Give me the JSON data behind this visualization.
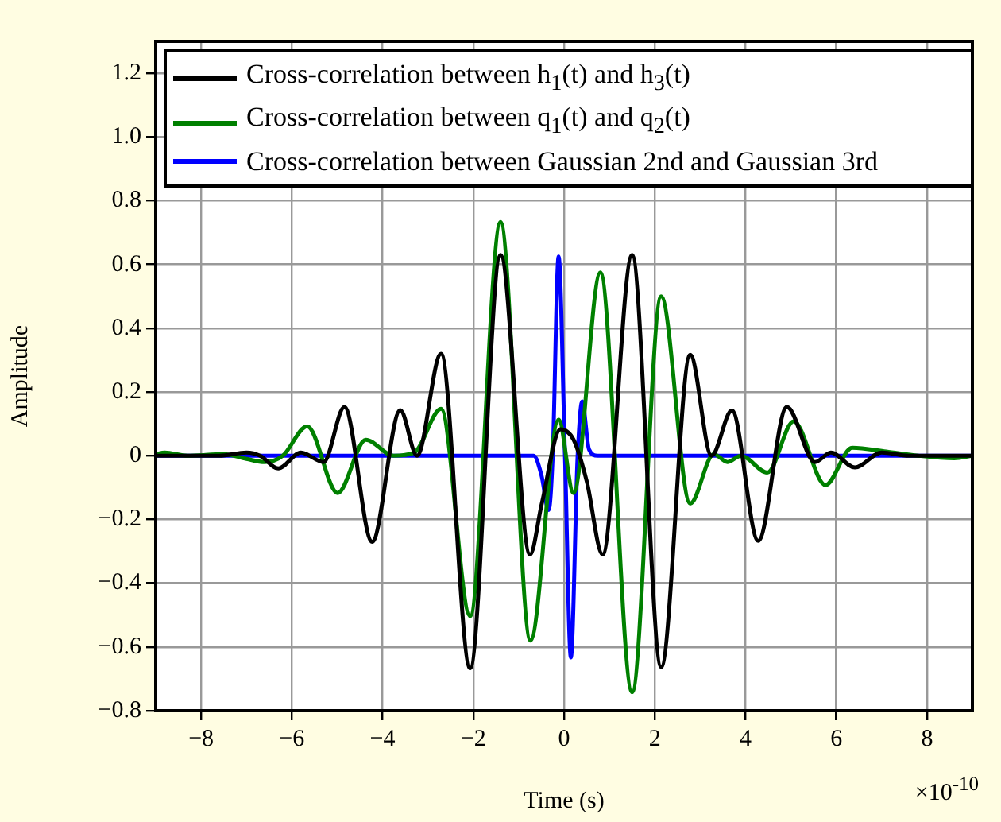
{
  "chart_data": {
    "type": "line",
    "xlabel": "Time (s)",
    "ylabel": "Amplitude",
    "annotations": [
      "×10$^{-10}$"
    ],
    "xlim": [
      -9,
      9
    ],
    "ylim": [
      -0.8,
      1.3
    ],
    "xticks": [
      {
        "value": -8,
        "label": "−8"
      },
      {
        "value": -6,
        "label": "−6"
      },
      {
        "value": -4,
        "label": "−4"
      },
      {
        "value": -2,
        "label": "−2"
      },
      0,
      2,
      4,
      6,
      8
    ],
    "yticks": [
      {
        "value": -0.8,
        "label": "−0.8"
      },
      {
        "value": -0.6,
        "label": "−0.6"
      },
      {
        "value": -0.4,
        "label": "−0.4"
      },
      {
        "value": -0.2,
        "label": "−0.2"
      },
      0,
      0.2,
      0.4,
      0.6,
      0.8,
      {
        "value": 1,
        "label": "1.0"
      },
      1.2
    ],
    "grid": true,
    "legend": "top",
    "marker": "none",
    "line_style": "solid",
    "series": [
      {
        "name": "Cross-correlation between h$_{1}$(t) and h$_{3}$(t)",
        "color": "#000000",
        "x": [
          -9,
          -7.6,
          -7,
          -6.7,
          -6.3,
          -5.8,
          -5.3,
          -4.84,
          -4.23,
          -3.61,
          -3.24,
          -2.71,
          -2.07,
          -1.4,
          -0.75,
          -0.49,
          -0.08,
          0.21,
          0.5,
          0.85,
          1.5,
          2.14,
          2.78,
          3.25,
          3.7,
          4.28,
          4.91,
          5.53,
          5.88,
          6.41,
          7,
          7.6,
          9
        ],
        "values": [
          0,
          0,
          0.01,
          0,
          -0.04,
          0.01,
          -0.02,
          0.153,
          -0.27,
          0.143,
          0,
          0.32,
          -0.667,
          0.63,
          -0.31,
          -0.15,
          0.083,
          0.05,
          -0.08,
          -0.31,
          0.63,
          -0.663,
          0.317,
          0,
          0.142,
          -0.267,
          0.153,
          -0.02,
          0.01,
          -0.037,
          0.01,
          0,
          0
        ]
      },
      {
        "name": "Cross-correlation between q$_{1}$(t) and q$_{2}$(t)",
        "color": "#008000",
        "x": [
          -9,
          -8.8,
          -8.3,
          -7.5,
          -7,
          -6.6,
          -6.2,
          -5.66,
          -4.99,
          -4.37,
          -3.76,
          -3.3,
          -2.71,
          -2.07,
          -1.4,
          -0.74,
          -0.12,
          0.21,
          0.8,
          1.5,
          2.14,
          2.78,
          3.3,
          3.6,
          3.9,
          4.48,
          5.06,
          5.76,
          6.35,
          7.1,
          7.8,
          8.6,
          9
        ],
        "values": [
          0.005,
          0.01,
          0,
          0.005,
          -0.01,
          -0.02,
          0,
          0.092,
          -0.117,
          0.05,
          0,
          0.01,
          0.147,
          -0.503,
          0.733,
          -0.58,
          0.113,
          -0.117,
          0.575,
          -0.742,
          0.5,
          -0.15,
          0.005,
          -0.02,
          0,
          -0.053,
          0.108,
          -0.092,
          0.025,
          0.013,
          0,
          -0.008,
          0
        ]
      },
      {
        "name": "Cross-correlation between Gaussian 2nd and Gaussian 3rd",
        "color": "#0000ff",
        "x": [
          -9,
          -0.67,
          -0.5,
          -0.34,
          -0.25,
          -0.12,
          0.02,
          0.15,
          0.3,
          0.4,
          0.55,
          0.74,
          9
        ],
        "values": [
          0,
          0,
          -0.06,
          -0.17,
          0,
          0.625,
          0,
          -0.633,
          0,
          0.17,
          0.02,
          0,
          0
        ]
      }
    ]
  }
}
